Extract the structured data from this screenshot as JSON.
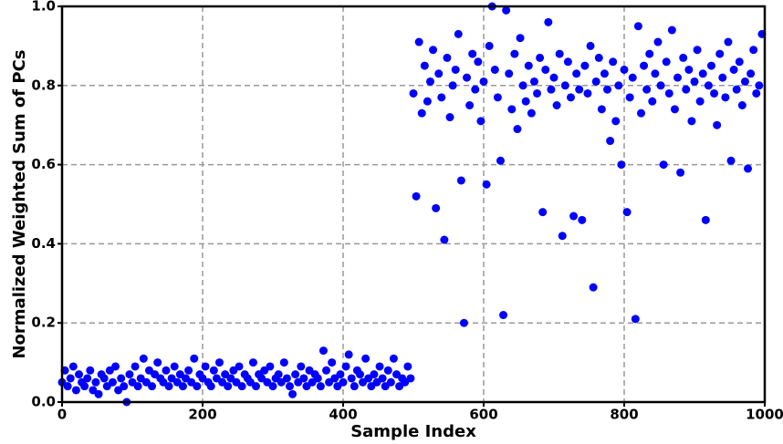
{
  "chart_data": {
    "type": "scatter",
    "xlabel": "Sample Index",
    "ylabel": "Normalized Weighted Sum of PCs",
    "xlim": [
      0,
      1000
    ],
    "ylim": [
      0,
      1
    ],
    "xticks": [
      0,
      200,
      400,
      600,
      800,
      1000
    ],
    "yticks": [
      {
        "value": 0,
        "label": "0.0"
      },
      0.2,
      0.4,
      0.6,
      0.8,
      {
        "value": 1,
        "label": "1.0"
      }
    ],
    "grid": true,
    "color": "#0000ff",
    "x": [
      0,
      4,
      8,
      12,
      16,
      20,
      24,
      28,
      32,
      36,
      40,
      44,
      48,
      52,
      56,
      60,
      64,
      68,
      72,
      76,
      80,
      84,
      88,
      92,
      96,
      100,
      104,
      108,
      112,
      116,
      120,
      124,
      128,
      132,
      136,
      140,
      144,
      148,
      152,
      156,
      160,
      164,
      168,
      172,
      176,
      180,
      184,
      188,
      192,
      196,
      200,
      204,
      208,
      212,
      216,
      220,
      224,
      228,
      232,
      236,
      240,
      244,
      248,
      252,
      256,
      260,
      264,
      268,
      272,
      276,
      280,
      284,
      288,
      292,
      296,
      300,
      304,
      308,
      312,
      316,
      320,
      324,
      328,
      332,
      336,
      340,
      344,
      348,
      352,
      356,
      360,
      364,
      368,
      372,
      376,
      380,
      384,
      388,
      392,
      396,
      400,
      404,
      408,
      412,
      416,
      420,
      424,
      428,
      432,
      436,
      440,
      444,
      448,
      452,
      456,
      460,
      464,
      468,
      472,
      476,
      480,
      484,
      488,
      492,
      496,
      500,
      504,
      508,
      512,
      516,
      520,
      524,
      528,
      532,
      536,
      540,
      544,
      548,
      552,
      556,
      560,
      564,
      568,
      572,
      576,
      580,
      584,
      588,
      592,
      596,
      600,
      604,
      608,
      612,
      616,
      620,
      624,
      628,
      632,
      636,
      640,
      644,
      648,
      652,
      656,
      660,
      664,
      668,
      672,
      676,
      680,
      684,
      688,
      692,
      696,
      700,
      704,
      708,
      712,
      716,
      720,
      724,
      728,
      732,
      736,
      740,
      744,
      748,
      752,
      756,
      760,
      764,
      768,
      772,
      776,
      780,
      784,
      788,
      792,
      796,
      800,
      804,
      808,
      812,
      816,
      820,
      824,
      828,
      832,
      836,
      840,
      844,
      848,
      852,
      856,
      860,
      864,
      868,
      872,
      876,
      880,
      884,
      888,
      892,
      896,
      900,
      904,
      908,
      912,
      916,
      920,
      924,
      928,
      932,
      936,
      940,
      944,
      948,
      952,
      956,
      960,
      964,
      968,
      972,
      976,
      980,
      984,
      988,
      992,
      996
    ],
    "values": [
      0.05,
      0.08,
      0.04,
      0.06,
      0.09,
      0.03,
      0.07,
      0.05,
      0.04,
      0.06,
      0.08,
      0.03,
      0.05,
      0.02,
      0.07,
      0.06,
      0.04,
      0.08,
      0.05,
      0.09,
      0.03,
      0.06,
      0.04,
      0.0,
      0.07,
      0.05,
      0.09,
      0.04,
      0.06,
      0.11,
      0.05,
      0.08,
      0.04,
      0.07,
      0.1,
      0.06,
      0.05,
      0.08,
      0.04,
      0.06,
      0.09,
      0.05,
      0.07,
      0.04,
      0.06,
      0.08,
      0.05,
      0.11,
      0.04,
      0.07,
      0.06,
      0.09,
      0.05,
      0.04,
      0.08,
      0.06,
      0.1,
      0.05,
      0.07,
      0.04,
      0.06,
      0.08,
      0.05,
      0.09,
      0.04,
      0.07,
      0.06,
      0.05,
      0.1,
      0.04,
      0.07,
      0.06,
      0.08,
      0.05,
      0.09,
      0.04,
      0.06,
      0.07,
      0.05,
      0.1,
      0.06,
      0.04,
      0.02,
      0.07,
      0.05,
      0.09,
      0.06,
      0.04,
      0.08,
      0.05,
      0.07,
      0.06,
      0.04,
      0.13,
      0.08,
      0.05,
      0.1,
      0.06,
      0.04,
      0.07,
      0.05,
      0.09,
      0.12,
      0.06,
      0.04,
      0.08,
      0.07,
      0.05,
      0.11,
      0.06,
      0.04,
      0.07,
      0.05,
      0.09,
      0.06,
      0.04,
      0.08,
      0.05,
      0.11,
      0.07,
      0.04,
      0.06,
      0.05,
      0.09,
      0.06,
      0.78,
      0.52,
      0.91,
      0.73,
      0.85,
      0.76,
      0.81,
      0.89,
      0.49,
      0.83,
      0.77,
      0.41,
      0.87,
      0.72,
      0.8,
      0.84,
      0.93,
      0.56,
      0.2,
      0.82,
      0.75,
      0.88,
      0.79,
      0.86,
      0.71,
      0.81,
      0.55,
      0.9,
      1.0,
      0.84,
      0.77,
      0.61,
      0.22,
      0.99,
      0.83,
      0.74,
      0.88,
      0.69,
      0.92,
      0.8,
      0.76,
      0.85,
      0.73,
      0.81,
      0.78,
      0.87,
      0.48,
      0.84,
      0.96,
      0.79,
      0.82,
      0.75,
      0.88,
      0.42,
      0.8,
      0.86,
      0.77,
      0.47,
      0.83,
      0.79,
      0.46,
      0.85,
      0.78,
      0.9,
      0.29,
      0.81,
      0.87,
      0.74,
      0.83,
      0.79,
      0.66,
      0.86,
      0.71,
      0.8,
      0.6,
      0.84,
      0.48,
      0.77,
      0.82,
      0.21,
      0.95,
      0.73,
      0.85,
      0.79,
      0.88,
      0.76,
      0.83,
      0.91,
      0.8,
      0.6,
      0.86,
      0.78,
      0.94,
      0.74,
      0.82,
      0.58,
      0.87,
      0.79,
      0.84,
      0.71,
      0.81,
      0.89,
      0.76,
      0.83,
      0.46,
      0.8,
      0.85,
      0.78,
      0.7,
      0.88,
      0.82,
      0.77,
      0.91,
      0.61,
      0.84,
      0.79,
      0.86,
      0.75,
      0.81,
      0.59,
      0.83,
      0.89,
      0.78,
      0.8,
      0.93
    ]
  }
}
